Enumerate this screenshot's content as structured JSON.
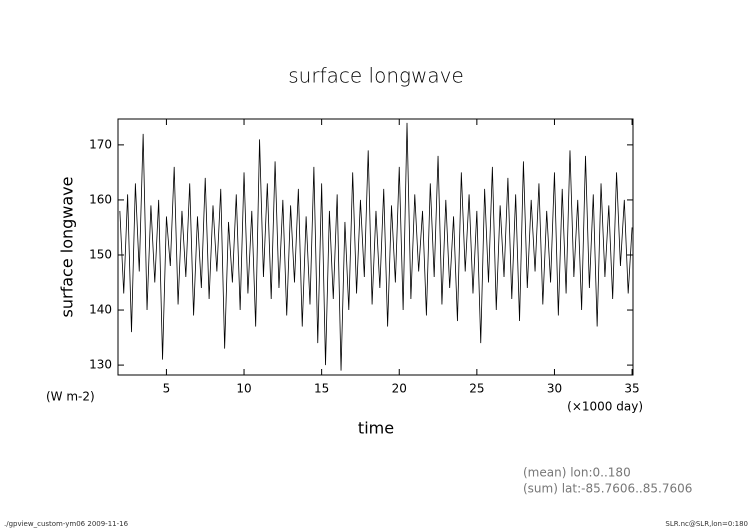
{
  "chart_data": {
    "type": "line",
    "title": "surface longwave",
    "y_label": "surface longwave",
    "y_unit": "(W m-2)",
    "x_label": "time",
    "x_unit": "(×1000 day)",
    "notes": [
      "(mean) lon:0..180",
      "(sum) lat:-85.7606..85.7606"
    ],
    "footer_left": "./gpview_custom-ym06  2009-11-16",
    "footer_right": "SLR.nc@SLR,lon=0:180",
    "color": "#000000",
    "xlim": [
      1.88,
      35.06
    ],
    "ylim": [
      128.2,
      174.7
    ],
    "xticks": [
      5,
      10,
      15,
      20,
      25,
      30,
      35
    ],
    "yticks": [
      130,
      140,
      150,
      160,
      170
    ],
    "x": [
      2.0,
      2.25,
      2.5,
      2.75,
      3.0,
      3.25,
      3.5,
      3.75,
      4.0,
      4.25,
      4.5,
      4.75,
      5.0,
      5.25,
      5.5,
      5.75,
      6.0,
      6.25,
      6.5,
      6.75,
      7.0,
      7.25,
      7.5,
      7.75,
      8.0,
      8.25,
      8.5,
      8.75,
      9.0,
      9.25,
      9.5,
      9.75,
      10.0,
      10.25,
      10.5,
      10.75,
      11.0,
      11.25,
      11.5,
      11.75,
      12.0,
      12.25,
      12.5,
      12.75,
      13.0,
      13.25,
      13.5,
      13.75,
      14.0,
      14.25,
      14.5,
      14.75,
      15.0,
      15.25,
      15.5,
      15.75,
      16.0,
      16.25,
      16.5,
      16.75,
      17.0,
      17.25,
      17.5,
      17.75,
      18.0,
      18.25,
      18.5,
      18.75,
      19.0,
      19.25,
      19.5,
      19.75,
      20.0,
      20.25,
      20.5,
      20.75,
      21.0,
      21.25,
      21.5,
      21.75,
      22.0,
      22.25,
      22.5,
      22.75,
      23.0,
      23.25,
      23.5,
      23.75,
      24.0,
      24.25,
      24.5,
      24.75,
      25.0,
      25.25,
      25.5,
      25.75,
      26.0,
      26.25,
      26.5,
      26.75,
      27.0,
      27.25,
      27.5,
      27.75,
      28.0,
      28.25,
      28.5,
      28.75,
      29.0,
      29.25,
      29.5,
      29.75,
      30.0,
      30.25,
      30.5,
      30.75,
      31.0,
      31.25,
      31.5,
      31.75,
      32.0,
      32.25,
      32.5,
      32.75,
      33.0,
      33.25,
      33.5,
      33.75,
      34.0,
      34.25,
      34.5,
      34.75,
      35.0
    ],
    "values": [
      158,
      143,
      161,
      136,
      163,
      147,
      172,
      140,
      159,
      145,
      160,
      131,
      157,
      148,
      166,
      141,
      158,
      146,
      163,
      139,
      157,
      144,
      164,
      142,
      159,
      147,
      162,
      133,
      156,
      145,
      161,
      140,
      165,
      143,
      158,
      137,
      171,
      146,
      163,
      142,
      167,
      144,
      160,
      139,
      159,
      145,
      162,
      137,
      157,
      141,
      166,
      134,
      163,
      130,
      158,
      142,
      161,
      129,
      156,
      140,
      165,
      143,
      160,
      146,
      169,
      141,
      158,
      144,
      162,
      137,
      159,
      145,
      166,
      140,
      174,
      142,
      161,
      147,
      158,
      139,
      163,
      146,
      168,
      141,
      160,
      144,
      157,
      138,
      165,
      147,
      161,
      143,
      158,
      134,
      162,
      145,
      166,
      140,
      159,
      146,
      164,
      142,
      161,
      138,
      167,
      144,
      160,
      147,
      163,
      141,
      158,
      145,
      165,
      139,
      162,
      143,
      169,
      146,
      160,
      140,
      168,
      144,
      161,
      137,
      163,
      146,
      159,
      142,
      165,
      148,
      160,
      143,
      155
    ]
  }
}
